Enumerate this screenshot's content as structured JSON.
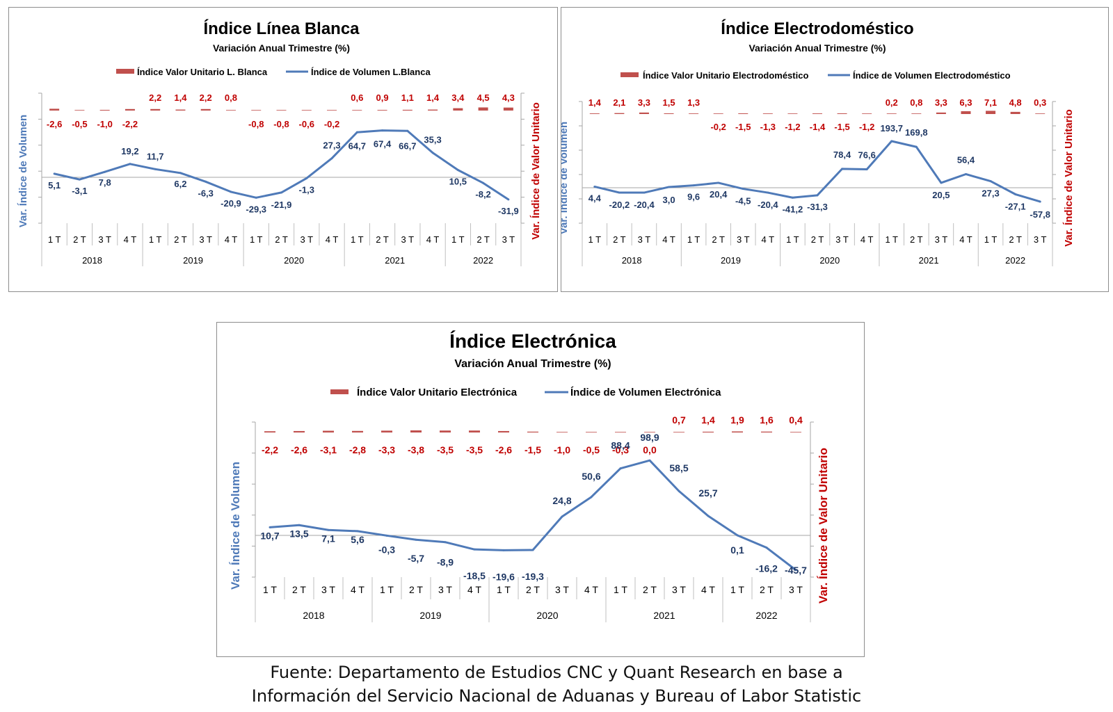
{
  "source": {
    "line1": "Fuente: Departamento de Estudios CNC y Quant Research en base a",
    "line2": "Información del Servicio Nacional de Aduanas y Bureau of Labor Statistic"
  },
  "colors": {
    "volume": "#4f7ab8",
    "unit_value": "#c0504d",
    "volume_label": "#1f3864",
    "unit_label": "#c00000",
    "axis": "#a6a6a6"
  },
  "chart_data": [
    {
      "type": "line",
      "title": "Índice Línea Blanca",
      "subtitle": "Variación Anual Trimestre  (%)",
      "ylabel_left": "Var. Índice de Volumen",
      "ylabel_right": "Var. Índice de Valor Unitario",
      "legend_position": "top",
      "categories": [
        "1 T",
        "2 T",
        "3 T",
        "4 T",
        "1 T",
        "2 T",
        "3 T",
        "4 T",
        "1 T",
        "2 T",
        "3 T",
        "4 T",
        "1 T",
        "2 T",
        "3 T",
        "4 T",
        "1 T",
        "2 T",
        "3 T"
      ],
      "years": [
        {
          "label": "2018",
          "count": 4
        },
        {
          "label": "2019",
          "count": 4
        },
        {
          "label": "2020",
          "count": 4
        },
        {
          "label": "2021",
          "count": 4
        },
        {
          "label": "2022",
          "count": 3
        }
      ],
      "series": [
        {
          "name": "Índice Valor Unitario L. Blanca",
          "type": "bar",
          "axis": "right",
          "labels": [
            "-2,6",
            "-0,5",
            "-1,0",
            "-2,2",
            "2,2",
            "1,4",
            "2,2",
            "0,8",
            "-0,8",
            "-0,8",
            "-0,6",
            "-0,2",
            "0,6",
            "0,9",
            "1,1",
            "1,4",
            "3,4",
            "4,5",
            "4,3"
          ],
          "values": [
            -2.6,
            -0.5,
            -1.0,
            -2.2,
            2.2,
            1.4,
            2.2,
            0.8,
            -0.8,
            -0.8,
            -0.6,
            -0.2,
            0.6,
            0.9,
            1.1,
            1.4,
            3.4,
            4.5,
            4.3
          ]
        },
        {
          "name": "Índice de Volumen L.Blanca",
          "type": "line",
          "axis": "left",
          "labels": [
            "5,1",
            "-3,1",
            "7,8",
            "19,2",
            "11,7",
            "6,2",
            "-6,3",
            "-20,9",
            "-29,3",
            "-21,9",
            "-1,3",
            "27,3",
            "64,7",
            "67,4",
            "66,7",
            "35,3",
            "10,5",
            "-8,2",
            "-31,9"
          ],
          "values": [
            5.1,
            -3.1,
            7.8,
            19.2,
            11.7,
            6.2,
            -6.3,
            -20.9,
            -29.3,
            -21.9,
            -1.3,
            27.3,
            64.7,
            67.4,
            66.7,
            35.3,
            10.5,
            -8.2,
            -31.9
          ]
        }
      ]
    },
    {
      "type": "line",
      "title": "Índice Electrodoméstico",
      "subtitle": "Variación Anual Trimestre  (%)",
      "ylabel_left": "Var. Índice de Volumen",
      "ylabel_right": "Var. Índice de Valor Unitario",
      "legend_position": "top",
      "categories": [
        "1 T",
        "2 T",
        "3 T",
        "4 T",
        "1 T",
        "2 T",
        "3 T",
        "4 T",
        "1 T",
        "2 T",
        "3 T",
        "4 T",
        "1 T",
        "2 T",
        "3 T",
        "4 T",
        "1 T",
        "2 T",
        "3 T"
      ],
      "years": [
        {
          "label": "2018",
          "count": 4
        },
        {
          "label": "2019",
          "count": 4
        },
        {
          "label": "2020",
          "count": 4
        },
        {
          "label": "2021",
          "count": 4
        },
        {
          "label": "2022",
          "count": 3
        }
      ],
      "series": [
        {
          "name": "Índice Valor Unitario Electrodoméstico",
          "type": "bar",
          "axis": "right",
          "labels": [
            "1,4",
            "2,1",
            "3,3",
            "1,5",
            "1,3",
            "-0,2",
            "-1,5",
            "-1,3",
            "-1,2",
            "-1,4",
            "-1,5",
            "-1,2",
            "0,2",
            "0,8",
            "3,3",
            "6,3",
            "7,1",
            "4,8",
            "0,3"
          ],
          "values": [
            1.4,
            2.1,
            3.3,
            1.5,
            1.3,
            -0.2,
            -1.5,
            -1.3,
            -1.2,
            -1.4,
            -1.5,
            -1.2,
            0.2,
            0.8,
            3.3,
            6.3,
            7.1,
            4.8,
            0.3
          ]
        },
        {
          "name": "Índice de Volumen Electrodoméstico",
          "type": "line",
          "axis": "left",
          "labels": [
            "4,4",
            "-20,2",
            "-20,4",
            "3,0",
            "9,6",
            "20,4",
            "-4,5",
            "-20,4",
            "-41,2",
            "-31,3",
            "78,4",
            "76,6",
            "193,7",
            "169,8",
            "20,5",
            "56,4",
            "27,3",
            "-27,1",
            "-57,8"
          ],
          "values": [
            4.4,
            -20.2,
            -20.4,
            3.0,
            9.6,
            20.4,
            -4.5,
            -20.4,
            -41.2,
            -31.3,
            78.4,
            76.6,
            193.7,
            169.8,
            20.5,
            56.4,
            27.3,
            -27.1,
            -57.8
          ]
        }
      ]
    },
    {
      "type": "line",
      "title": "Índice Electrónica",
      "subtitle": "Variación Anual Trimestre  (%)",
      "ylabel_left": "Var. Índice de Volumen",
      "ylabel_right": "Var. Índice de Valor Unitario",
      "legend_position": "top",
      "categories": [
        "1 T",
        "2 T",
        "3 T",
        "4 T",
        "1 T",
        "2 T",
        "3 T",
        "4 T",
        "1 T",
        "2 T",
        "3 T",
        "4 T",
        "1 T",
        "2 T",
        "3 T",
        "4 T",
        "1 T",
        "2 T",
        "3 T"
      ],
      "years": [
        {
          "label": "2018",
          "count": 4
        },
        {
          "label": "2019",
          "count": 4
        },
        {
          "label": "2020",
          "count": 4
        },
        {
          "label": "2021",
          "count": 4
        },
        {
          "label": "2022",
          "count": 3
        }
      ],
      "series": [
        {
          "name": "Índice Valor Unitario Electrónica",
          "type": "bar",
          "axis": "right",
          "labels": [
            "-2,2",
            "-2,6",
            "-3,1",
            "-2,8",
            "-3,3",
            "-3,8",
            "-3,5",
            "-3,5",
            "-2,6",
            "-1,5",
            "-1,0",
            "-0,5",
            "-0,3",
            "0,0",
            "0,7",
            "1,4",
            "1,9",
            "1,6",
            "0,4"
          ],
          "values": [
            -2.2,
            -2.6,
            -3.1,
            -2.8,
            -3.3,
            -3.8,
            -3.5,
            -3.5,
            -2.6,
            -1.5,
            -1.0,
            -0.5,
            -0.3,
            0.0,
            0.7,
            1.4,
            1.9,
            1.6,
            0.4
          ]
        },
        {
          "name": "Índice de Volumen Electrónica",
          "type": "line",
          "axis": "left",
          "labels": [
            "10,7",
            "13,5",
            "7,1",
            "5,6",
            "-0,3",
            "-5,7",
            "-8,9",
            "-18,5",
            "-19,6",
            "-19,3",
            "24,8",
            "50,6",
            "88,4",
            "98,9",
            "58,5",
            "25,7",
            "0,1",
            "-16,2",
            "-45,7"
          ],
          "values": [
            10.7,
            13.5,
            7.1,
            5.6,
            -0.3,
            -5.7,
            -8.9,
            -18.5,
            -19.6,
            -19.3,
            24.8,
            50.6,
            88.4,
            98.9,
            58.5,
            25.7,
            0.1,
            -16.2,
            -45.7
          ]
        }
      ]
    }
  ]
}
